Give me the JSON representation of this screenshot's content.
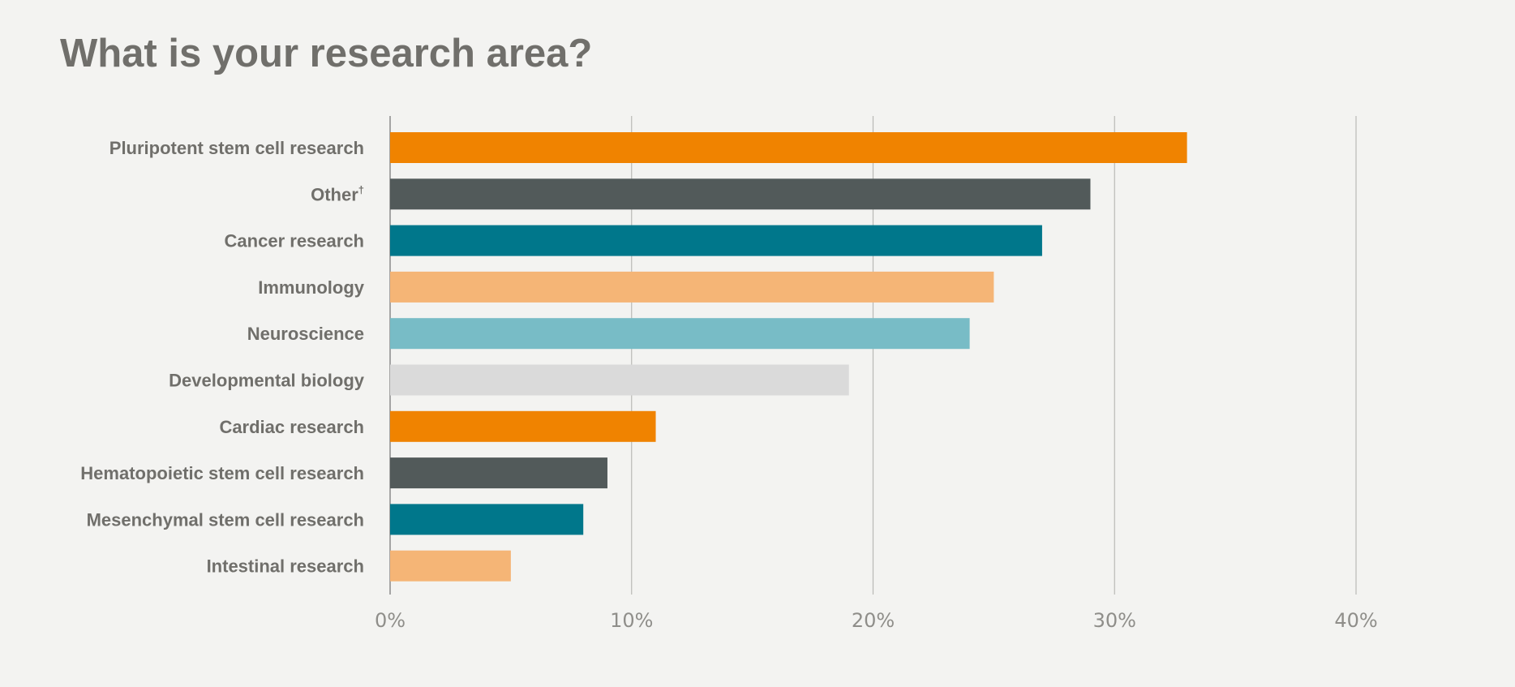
{
  "chart_data": {
    "type": "bar",
    "orientation": "horizontal",
    "title": "What is your research area?",
    "xlabel": "",
    "ylabel": "",
    "categories": [
      "Pluripotent stem cell research",
      "Other†",
      "Cancer research",
      "Immunology",
      "Neuroscience",
      "Developmental biology",
      "Cardiac research",
      "Hematopoietic stem cell research",
      "Mesenchymal stem cell research",
      "Intestinal research"
    ],
    "values": [
      33,
      29,
      27,
      25,
      24,
      19,
      11,
      9,
      8,
      5
    ],
    "bar_colors": [
      "#f08300",
      "#525a5a",
      "#00778b",
      "#f5b576",
      "#78bcc6",
      "#dadada",
      "#f08300",
      "#525a5a",
      "#00778b",
      "#f5b576"
    ],
    "xlim": [
      0,
      40
    ],
    "xticks": [
      0,
      10,
      20,
      30,
      40
    ],
    "xtick_labels": [
      "0%",
      "10%",
      "20%",
      "30%",
      "40%"
    ],
    "grid": true,
    "legend": "none"
  }
}
